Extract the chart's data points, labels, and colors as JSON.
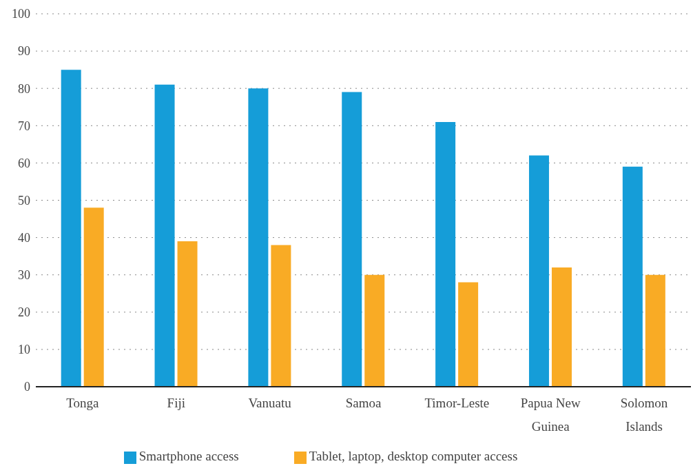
{
  "chart_data": {
    "type": "bar",
    "categories": [
      "Tonga",
      "Fiji",
      "Vanuatu",
      "Samoa",
      "Timor-Leste",
      "Papua New Guinea",
      "Solomon Islands"
    ],
    "series": [
      {
        "name": "Smartphone access",
        "color": "#159dd8",
        "values": [
          85,
          81,
          80,
          79,
          71,
          62,
          59
        ]
      },
      {
        "name": "Tablet, laptop, desktop computer access",
        "color": "#f9ab25",
        "values": [
          48,
          39,
          38,
          30,
          28,
          32,
          30
        ]
      }
    ],
    "ylim": [
      0,
      100
    ],
    "yticks": [
      0,
      10,
      20,
      30,
      40,
      50,
      60,
      70,
      80,
      90,
      100
    ],
    "grid": "y",
    "legend": "bottom"
  }
}
